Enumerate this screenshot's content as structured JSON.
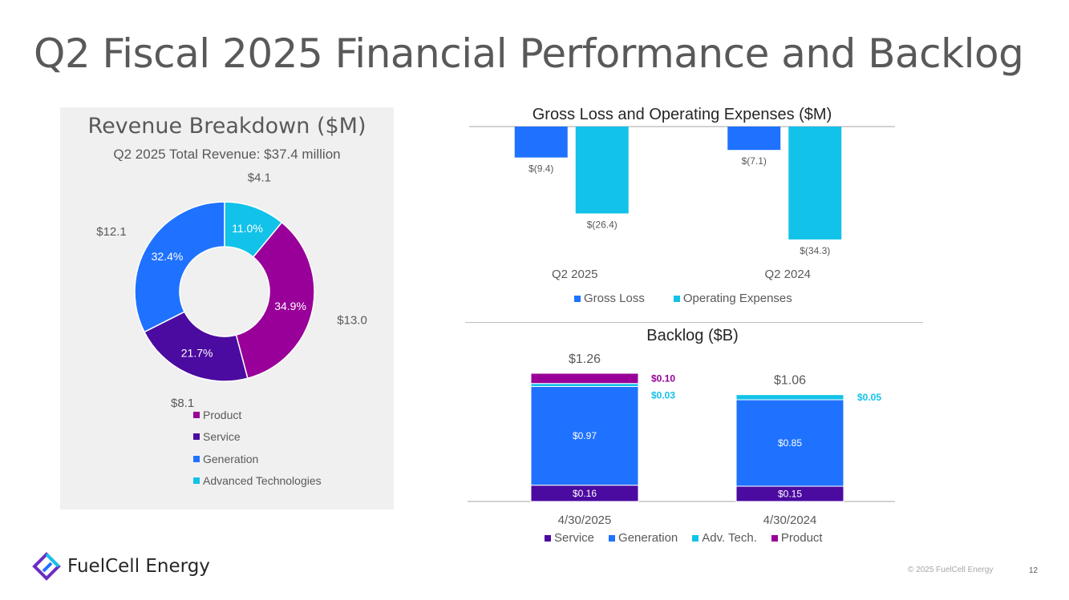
{
  "slide": {
    "title": "Q2 Fiscal 2025 Financial Performance and Backlog",
    "brand": "FuelCell Energy",
    "copyright": "© 2025 FuelCell Energy",
    "page_number": "12"
  },
  "colors": {
    "product": "#990099",
    "service": "#4b0aa0",
    "generation": "#1f72ff",
    "adv_tech": "#12c2e9"
  },
  "chart_data": [
    {
      "id": "revenue",
      "type": "pie",
      "donut": true,
      "title": "Revenue Breakdown ($M)",
      "subtitle": "Q2 2025 Total Revenue: $37.4 million",
      "slices": [
        {
          "name": "Product",
          "value": 13.0,
          "value_label": "$13.0",
          "pct_label": "34.9%",
          "color": "#990099"
        },
        {
          "name": "Service",
          "value": 8.1,
          "value_label": "$8.1",
          "pct_label": "21.7%",
          "color": "#4b0aa0"
        },
        {
          "name": "Generation",
          "value": 12.1,
          "value_label": "$12.1",
          "pct_label": "32.4%",
          "color": "#1f72ff"
        },
        {
          "name": "Advanced Technologies",
          "value": 4.1,
          "value_label": "$4.1",
          "pct_label": "11.0%",
          "color": "#12c2e9"
        }
      ],
      "legend": [
        "Product",
        "Service",
        "Generation",
        "Advanced Technologies"
      ]
    },
    {
      "id": "gross_loss_opex",
      "type": "bar",
      "title": "Gross Loss and Operating Expenses ($M)",
      "categories": [
        "Q2 2025",
        "Q2 2024"
      ],
      "series": [
        {
          "name": "Gross Loss",
          "values": [
            -9.4,
            -7.1
          ],
          "labels": [
            "$(9.4)",
            "$(7.1)"
          ],
          "color": "#1f72ff"
        },
        {
          "name": "Operating Expenses",
          "values": [
            -26.4,
            -34.3
          ],
          "labels": [
            "$(26.4)",
            "$(34.3)"
          ],
          "color": "#12c2e9"
        }
      ],
      "ylim": [
        -37,
        0
      ]
    },
    {
      "id": "backlog",
      "type": "bar",
      "stacked": true,
      "title": "Backlog ($B)",
      "categories": [
        "4/30/2025",
        "4/30/2024"
      ],
      "totals": [
        "$1.26",
        "$1.06"
      ],
      "total_values": [
        1.26,
        1.06
      ],
      "series": [
        {
          "name": "Service",
          "values": [
            0.16,
            0.15
          ],
          "labels": [
            "$0.16",
            "$0.15"
          ],
          "color": "#4b0aa0"
        },
        {
          "name": "Generation",
          "values": [
            0.97,
            0.85
          ],
          "labels": [
            "$0.97",
            "$0.85"
          ],
          "color": "#1f72ff"
        },
        {
          "name": "Adv. Tech.",
          "values": [
            0.03,
            0.05
          ],
          "labels": [
            "$0.03",
            "$0.05"
          ],
          "color": "#12c2e9"
        },
        {
          "name": "Product",
          "values": [
            0.1,
            0.0
          ],
          "labels": [
            "$0.10",
            ""
          ],
          "color": "#990099"
        }
      ],
      "ylim": [
        0,
        1.26
      ]
    }
  ]
}
